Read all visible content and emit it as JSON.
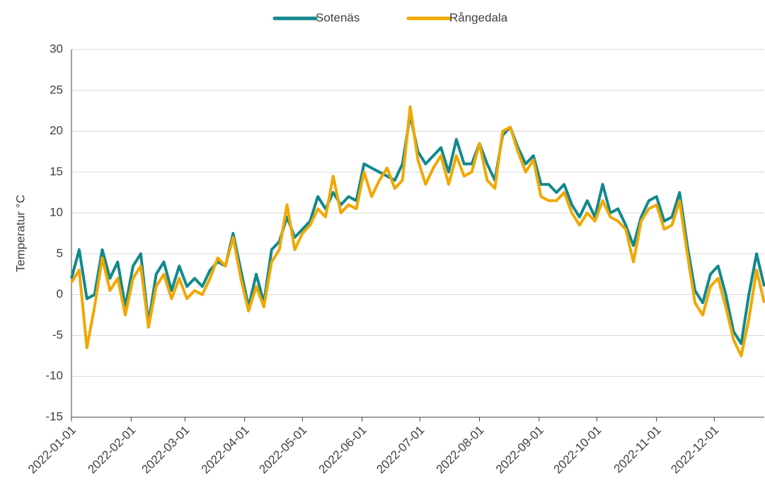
{
  "chart_data": {
    "type": "line",
    "y_label": "Temperatur °C",
    "x": [
      "2022-01-01",
      "2022-01-05",
      "2022-01-09",
      "2022-01-13",
      "2022-01-17",
      "2022-01-21",
      "2022-01-25",
      "2022-01-29",
      "2022-02-02",
      "2022-02-06",
      "2022-02-10",
      "2022-02-14",
      "2022-02-18",
      "2022-02-22",
      "2022-02-26",
      "2022-03-02",
      "2022-03-06",
      "2022-03-10",
      "2022-03-14",
      "2022-03-18",
      "2022-03-22",
      "2022-03-26",
      "2022-03-30",
      "2022-04-03",
      "2022-04-07",
      "2022-04-11",
      "2022-04-15",
      "2022-04-19",
      "2022-04-23",
      "2022-04-27",
      "2022-05-01",
      "2022-05-05",
      "2022-05-09",
      "2022-05-13",
      "2022-05-17",
      "2022-05-21",
      "2022-05-25",
      "2022-05-29",
      "2022-06-02",
      "2022-06-06",
      "2022-06-10",
      "2022-06-14",
      "2022-06-18",
      "2022-06-22",
      "2022-06-26",
      "2022-06-30",
      "2022-07-04",
      "2022-07-08",
      "2022-07-12",
      "2022-07-16",
      "2022-07-20",
      "2022-07-24",
      "2022-07-28",
      "2022-08-01",
      "2022-08-05",
      "2022-08-09",
      "2022-08-13",
      "2022-08-17",
      "2022-08-21",
      "2022-08-25",
      "2022-08-29",
      "2022-09-02",
      "2022-09-06",
      "2022-09-10",
      "2022-09-14",
      "2022-09-18",
      "2022-09-22",
      "2022-09-26",
      "2022-09-30",
      "2022-10-04",
      "2022-10-08",
      "2022-10-12",
      "2022-10-16",
      "2022-10-20",
      "2022-10-24",
      "2022-10-28",
      "2022-11-01",
      "2022-11-05",
      "2022-11-09",
      "2022-11-13",
      "2022-11-17",
      "2022-11-21",
      "2022-11-25",
      "2022-11-29",
      "2022-12-03",
      "2022-12-07",
      "2022-12-11",
      "2022-12-15",
      "2022-12-19",
      "2022-12-23",
      "2022-12-27"
    ],
    "series": [
      {
        "name": "Sotenäs",
        "color": "#12898c",
        "values": [
          2,
          5.5,
          -0.5,
          0,
          5.5,
          2,
          4,
          -1.5,
          3.5,
          5,
          -3.5,
          2.5,
          4,
          0.5,
          3.5,
          1,
          2,
          1,
          3,
          4,
          3.5,
          7.5,
          3,
          -1.5,
          2.5,
          -1,
          5.5,
          6.5,
          9.5,
          7,
          8,
          9,
          12,
          10.5,
          12.5,
          11,
          12,
          11.5,
          16,
          15.5,
          15,
          14.5,
          14,
          16,
          22,
          17.5,
          16,
          17,
          18,
          15,
          19,
          16,
          16,
          18.5,
          16,
          14,
          19.5,
          20.5,
          18,
          16,
          17,
          13.5,
          13.5,
          12.5,
          13.5,
          11,
          9.5,
          11.5,
          9.5,
          13.5,
          10,
          10.5,
          8.5,
          6,
          9.5,
          11.5,
          12,
          9,
          9.5,
          12.5,
          6,
          0.5,
          -1,
          2.5,
          3.5,
          0,
          -4.5,
          -6,
          0,
          5,
          1
        ]
      },
      {
        "name": "Rångedala",
        "color": "#f0a800",
        "values": [
          1.5,
          3,
          -6.5,
          -1.5,
          4.5,
          0.5,
          2,
          -2.5,
          2,
          3.5,
          -4,
          1,
          2.5,
          -0.5,
          2,
          -0.5,
          0.5,
          0,
          2,
          4.5,
          3.5,
          7,
          2,
          -2,
          1,
          -1.5,
          4,
          5.5,
          11,
          5.5,
          7.5,
          8.5,
          10.5,
          9.5,
          14.5,
          10,
          11,
          10.5,
          15,
          12,
          14,
          15.5,
          13,
          14,
          23,
          16.5,
          13.5,
          15.5,
          17,
          13.5,
          17,
          14.5,
          15,
          18.5,
          14,
          13,
          20,
          20.5,
          17.5,
          15,
          16.5,
          12,
          11.5,
          11.5,
          12.5,
          10,
          8.5,
          10,
          9,
          11.5,
          9.5,
          9,
          8,
          4,
          9,
          10.5,
          11,
          8,
          8.5,
          11.5,
          5,
          -1,
          -2.5,
          1,
          2,
          -1.5,
          -5.5,
          -7.5,
          -3,
          3,
          -1
        ]
      }
    ],
    "xlim": [
      "2022-01-01",
      "2022-12-27"
    ],
    "xticks": [
      "2022-01-01",
      "2022-02-01",
      "2022-03-01",
      "2022-04-01",
      "2022-05-01",
      "2022-06-01",
      "2022-07-01",
      "2022-08-01",
      "2022-09-01",
      "2022-10-01",
      "2022-11-01",
      "2022-12-01"
    ],
    "ylim": [
      -15,
      30
    ],
    "yticks": [
      -15,
      -10,
      -5,
      0,
      5,
      10,
      15,
      20,
      25,
      30
    ],
    "grid": true,
    "legend": "top"
  }
}
